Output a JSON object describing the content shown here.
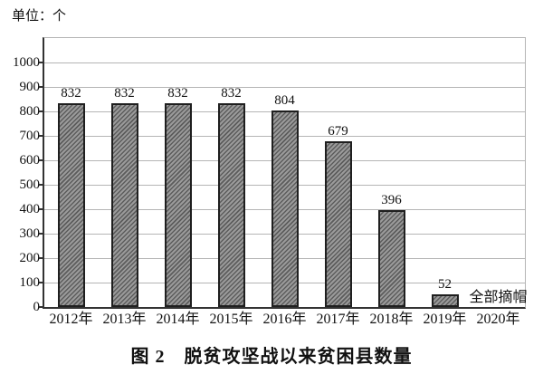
{
  "figure": {
    "unit_label": "单位：个",
    "caption": "图 2　脱贫攻坚战以来贫困县数量"
  },
  "chart_data": {
    "type": "bar",
    "title": "图 2　脱贫攻坚战以来贫困县数量",
    "unit_label": "单位：个",
    "categories": [
      "2012年",
      "2013年",
      "2014年",
      "2015年",
      "2016年",
      "2017年",
      "2018年",
      "2019年",
      "2020年"
    ],
    "values": [
      832,
      832,
      832,
      832,
      804,
      679,
      396,
      52,
      0
    ],
    "data_labels": [
      "832",
      "832",
      "832",
      "832",
      "804",
      "679",
      "396",
      "52",
      ""
    ],
    "annotations": [
      {
        "category": "2020年",
        "text": "全部摘帽"
      }
    ],
    "xlabel": "",
    "ylabel": "",
    "ylim": [
      0,
      1100
    ],
    "yticks": [
      0,
      100,
      200,
      300,
      400,
      500,
      600,
      700,
      800,
      900,
      1000
    ],
    "grid": true,
    "legend_position": "none",
    "colors": {
      "bar_fill": "#9a9a9a",
      "bar_hatch": "#5c5c5c",
      "bar_border": "#1f1f1f",
      "gridline": "#b5b5b5",
      "axis": "#333333",
      "text": "#111111"
    }
  }
}
